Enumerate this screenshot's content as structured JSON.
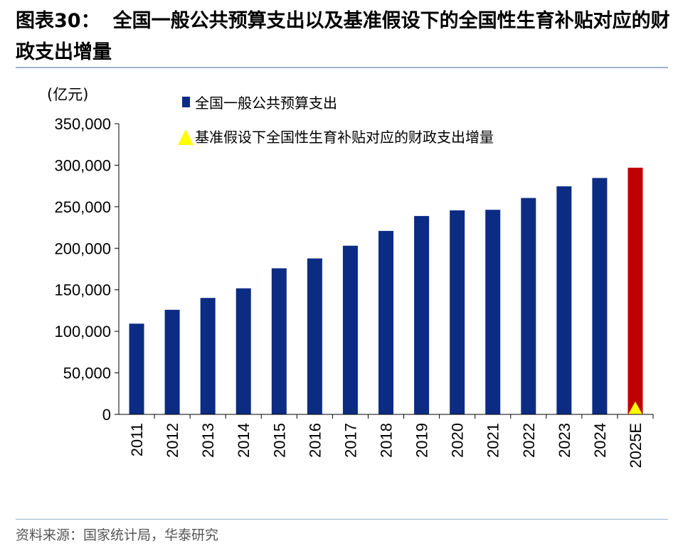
{
  "title": {
    "number": "图表30：",
    "text": "全国一般公共预算支出以及基准假设下的全国性生育补贴对应的财政支出增量"
  },
  "source": "资料来源：国家统计局，华泰研究",
  "chart_data": {
    "type": "bar",
    "unit_label": "(亿元)",
    "categories": [
      "2011",
      "2012",
      "2013",
      "2014",
      "2015",
      "2016",
      "2017",
      "2018",
      "2019",
      "2020",
      "2021",
      "2022",
      "2023",
      "2024",
      "2025E"
    ],
    "series": [
      {
        "name": "全国一般公共预算支出",
        "color": "#0c2c84",
        "marker": "square",
        "values": [
          109248,
          125953,
          140212,
          151786,
          175878,
          187755,
          203085,
          220904,
          238858,
          245679,
          246322,
          260552,
          274574,
          284612,
          297000
        ]
      },
      {
        "name": "基准假设下全国性生育补贴对应的财政支出增量",
        "color": "#ffff00",
        "marker": "triangle",
        "values": [
          null,
          null,
          null,
          null,
          null,
          null,
          null,
          null,
          null,
          null,
          null,
          null,
          null,
          null,
          1000
        ]
      }
    ],
    "highlight": {
      "category": "2025E",
      "bar_color": "#c00000"
    },
    "ylim": [
      0,
      350000
    ],
    "yticks": [
      0,
      50000,
      100000,
      150000,
      200000,
      250000,
      300000,
      350000
    ],
    "ytick_labels": [
      "0",
      "50,000",
      "100,000",
      "150,000",
      "200,000",
      "250,000",
      "300,000",
      "350,000"
    ],
    "grid": false,
    "legend_position": "top-left"
  }
}
